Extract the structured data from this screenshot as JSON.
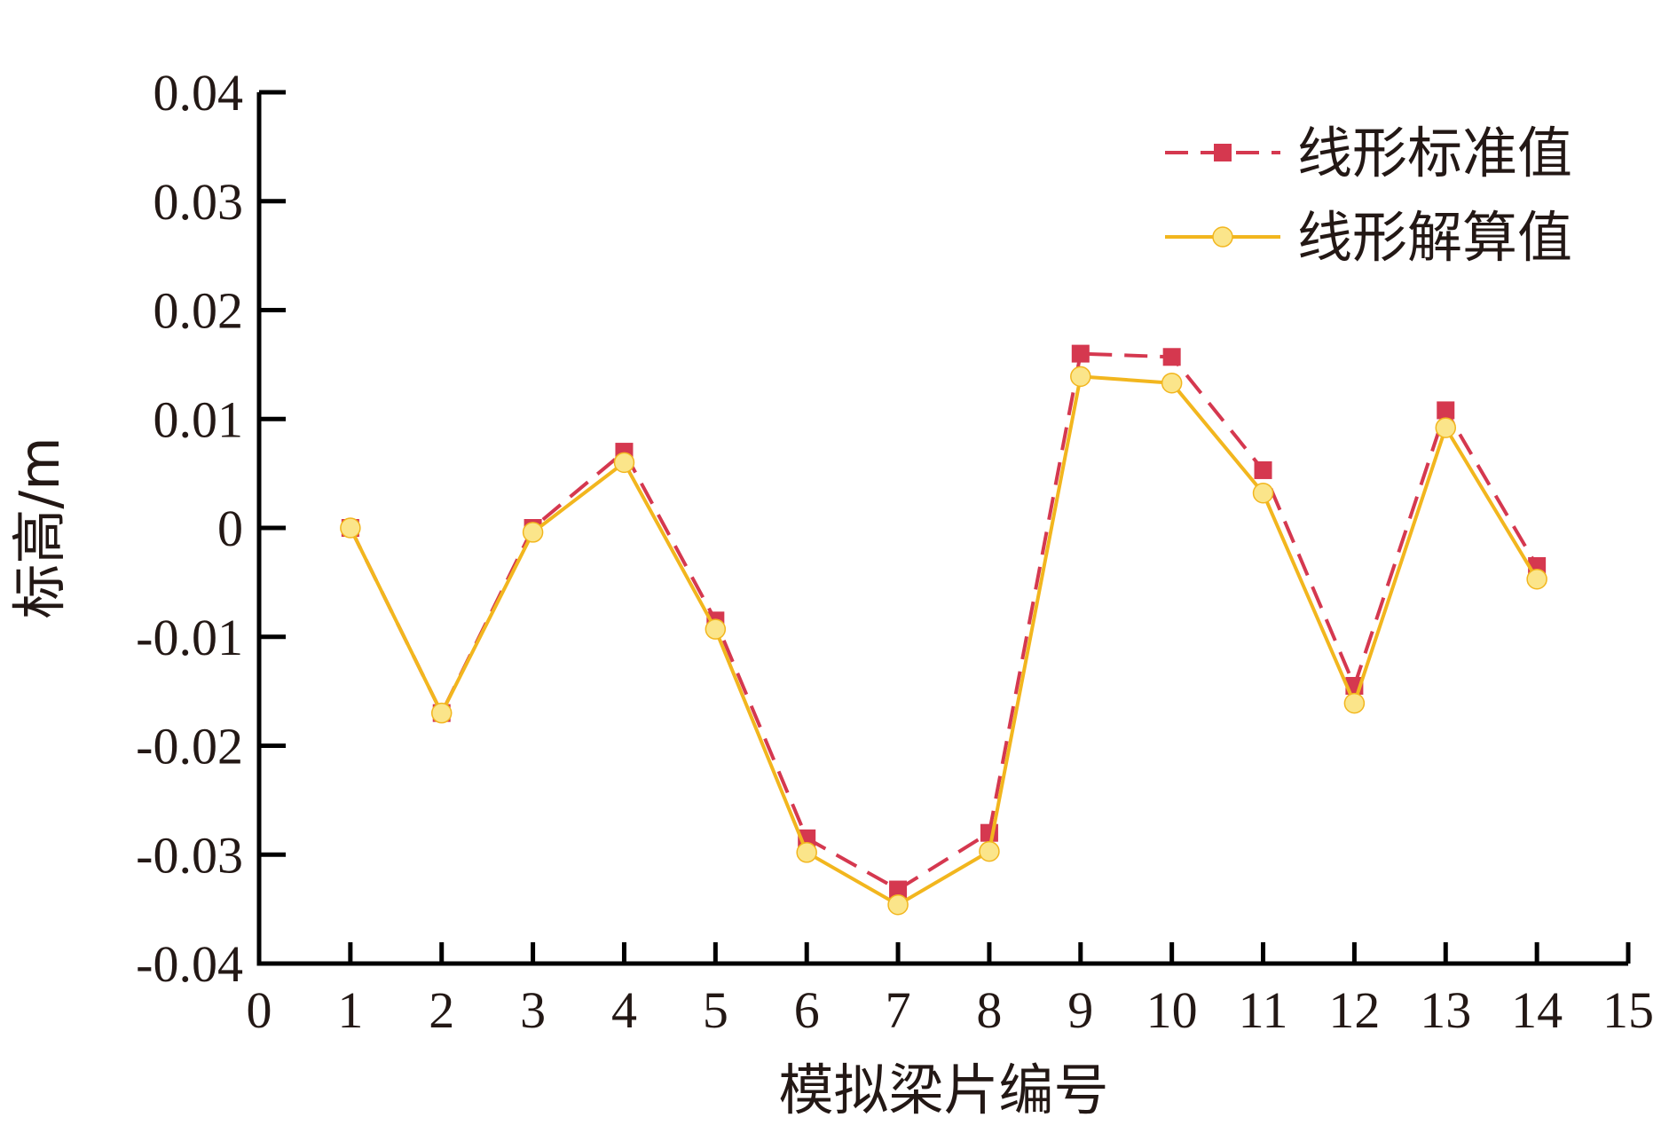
{
  "chart_data": {
    "type": "line",
    "xlabel": "模拟梁片编号",
    "ylabel": "标高/m",
    "xlim": [
      0,
      15
    ],
    "ylim": [
      -0.04,
      0.04
    ],
    "x_ticks": [
      "0",
      "1",
      "2",
      "3",
      "4",
      "5",
      "6",
      "7",
      "8",
      "9",
      "10",
      "11",
      "12",
      "13",
      "14",
      "15"
    ],
    "y_ticks": [
      "0.04",
      "0.03",
      "0.02",
      "0.01",
      "0",
      "-0.01",
      "-0.02",
      "-0.03",
      "-0.04"
    ],
    "grid": false,
    "legend_position": "top-right",
    "x": [
      1,
      2,
      3,
      4,
      5,
      6,
      7,
      8,
      9,
      10,
      11,
      12,
      13,
      14
    ],
    "series": [
      {
        "name": "线形标准值",
        "color": "#d5384f",
        "marker": "square",
        "line_style": "dashed",
        "values": [
          0,
          -0.017,
          0,
          0.007,
          -0.0085,
          -0.0285,
          -0.0332,
          -0.028,
          0.016,
          0.0157,
          0.0053,
          -0.0145,
          0.0108,
          -0.0035
        ]
      },
      {
        "name": "线形解算值",
        "color": "#f2b61e",
        "marker": "circle",
        "line_style": "solid",
        "values": [
          0,
          -0.017,
          -0.0004,
          0.006,
          -0.0093,
          -0.0298,
          -0.0346,
          -0.0297,
          0.0139,
          0.0133,
          0.0032,
          -0.0161,
          0.0092,
          -0.0047
        ]
      }
    ]
  }
}
